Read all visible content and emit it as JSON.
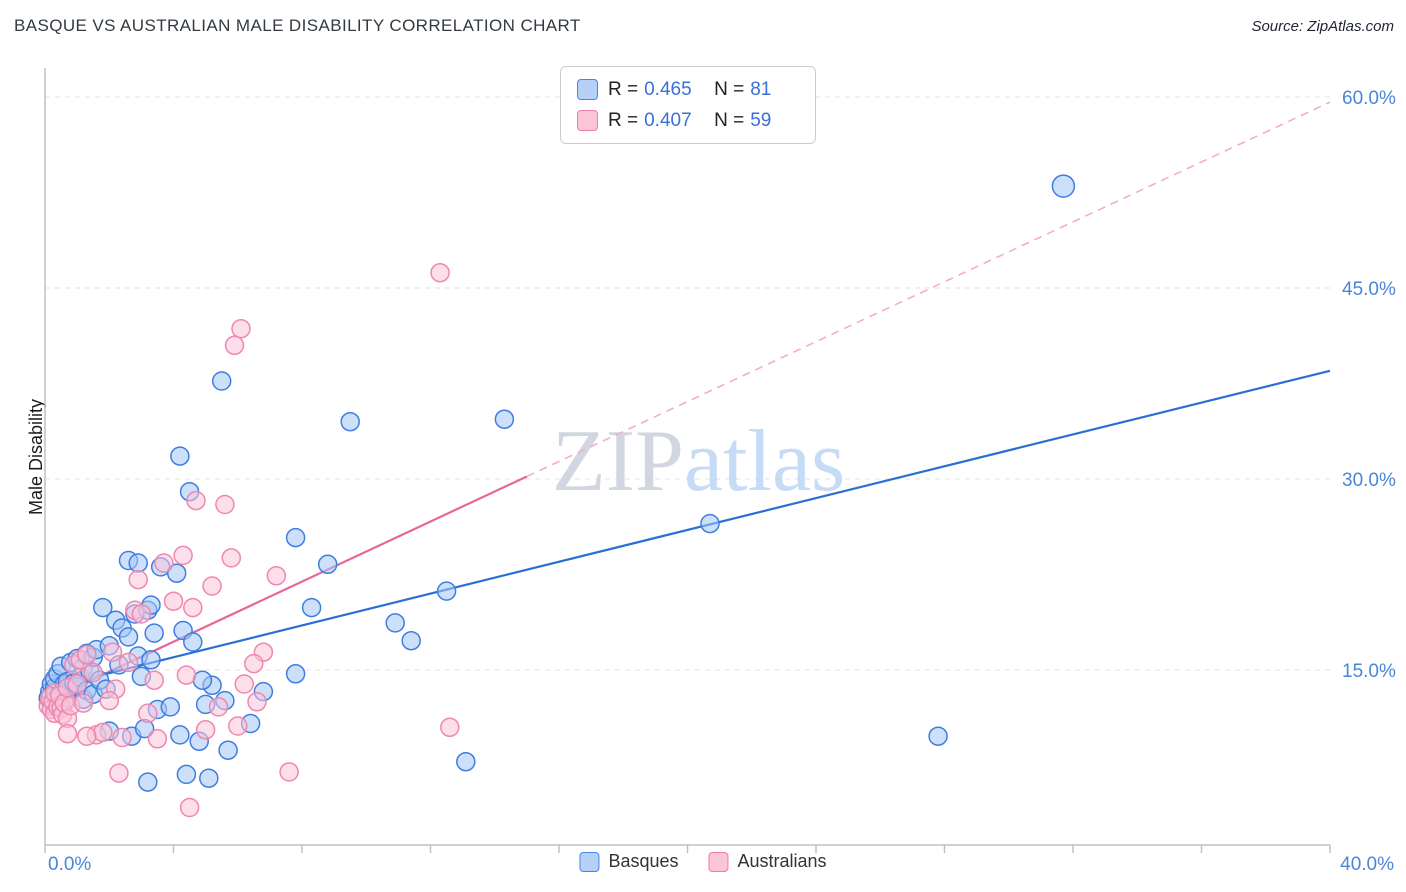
{
  "header": {
    "title": "BASQUE VS AUSTRALIAN MALE DISABILITY CORRELATION CHART",
    "source": "Source: ZipAtlas.com"
  },
  "legend_box": {
    "series": [
      {
        "r_label": "R =",
        "r": "0.465",
        "n_label": "N =",
        "n": "81"
      },
      {
        "r_label": "R =",
        "r": "0.407",
        "n_label": "N =",
        "n": "59"
      }
    ]
  },
  "watermark": {
    "zip": "ZIP",
    "atlas": "atlas"
  },
  "axes": {
    "y_label": "Male Disability",
    "y_ticks": [
      "60.0%",
      "45.0%",
      "30.0%",
      "15.0%"
    ],
    "x_min_label": "0.0%",
    "x_max_label": "40.0%"
  },
  "bottom_legend": [
    {
      "label": "Basques"
    },
    {
      "label": "Australians"
    }
  ],
  "colors": {
    "basques_stroke": "#3f7de0",
    "basques_fill": "rgba(164,199,245,0.55)",
    "australians_stroke": "#ef87ae",
    "australians_fill": "rgba(250,197,216,0.55)",
    "trend_blue": "#2a6fd4",
    "trend_pink": "#e8659a",
    "trend_pink_dashed": "#f3afc4",
    "gridline": "#e2e2e2",
    "axis_line": "#c0c0c0",
    "tick_label": "#4a86d8"
  },
  "chart_data": {
    "type": "scatter",
    "title": "BASQUE VS AUSTRALIAN MALE DISABILITY CORRELATION CHART",
    "xlabel": "",
    "ylabel": "Male Disability",
    "xlim": [
      0,
      40
    ],
    "ylim": [
      0,
      62
    ],
    "x_tick_values": [
      0,
      4,
      8,
      12,
      16,
      20,
      24,
      28,
      32,
      36,
      40
    ],
    "y_tick_values": [
      15,
      30,
      45,
      60
    ],
    "grid": true,
    "legend_position": "top-center",
    "series": [
      {
        "name": "Basques",
        "r": 0.465,
        "n": 81,
        "points": [
          [
            0.1,
            12.8
          ],
          [
            0.15,
            13.3
          ],
          [
            0.2,
            13.9
          ],
          [
            0.3,
            12.1
          ],
          [
            0.3,
            13.6
          ],
          [
            0.3,
            14.3
          ],
          [
            0.4,
            12.9
          ],
          [
            0.4,
            14.7
          ],
          [
            0.5,
            13.1
          ],
          [
            0.5,
            15.3
          ],
          [
            0.6,
            12.5
          ],
          [
            0.6,
            13.9
          ],
          [
            0.7,
            14.1
          ],
          [
            0.7,
            12.8
          ],
          [
            0.8,
            15.6
          ],
          [
            0.9,
            14.0
          ],
          [
            1.0,
            13.7
          ],
          [
            1.0,
            15.9
          ],
          [
            1.1,
            14.4
          ],
          [
            1.2,
            12.7
          ],
          [
            1.2,
            15.2
          ],
          [
            1.3,
            13.4
          ],
          [
            1.3,
            16.3
          ],
          [
            1.4,
            14.9
          ],
          [
            1.5,
            13.1
          ],
          [
            1.5,
            16.0
          ],
          [
            1.6,
            16.6
          ],
          [
            1.7,
            14.2
          ],
          [
            1.8,
            19.9
          ],
          [
            1.9,
            13.5
          ],
          [
            2.0,
            16.9
          ],
          [
            2.0,
            10.2
          ],
          [
            2.2,
            18.9
          ],
          [
            2.3,
            15.4
          ],
          [
            2.4,
            18.3
          ],
          [
            2.6,
            17.6
          ],
          [
            2.7,
            9.8
          ],
          [
            2.8,
            19.4
          ],
          [
            2.9,
            16.1
          ],
          [
            3.0,
            14.5
          ],
          [
            3.1,
            10.4
          ],
          [
            3.2,
            19.7
          ],
          [
            3.3,
            15.8
          ],
          [
            3.4,
            17.9
          ],
          [
            3.5,
            11.9
          ],
          [
            2.6,
            23.6
          ],
          [
            2.9,
            23.4
          ],
          [
            3.6,
            23.1
          ],
          [
            4.1,
            22.6
          ],
          [
            3.3,
            20.1
          ],
          [
            4.3,
            18.1
          ],
          [
            4.6,
            17.2
          ],
          [
            5.0,
            12.3
          ],
          [
            5.2,
            13.8
          ],
          [
            4.9,
            14.2
          ],
          [
            5.6,
            12.6
          ],
          [
            3.9,
            12.1
          ],
          [
            4.2,
            9.9
          ],
          [
            3.2,
            6.2
          ],
          [
            4.4,
            6.8
          ],
          [
            5.1,
            6.5
          ],
          [
            5.7,
            8.7
          ],
          [
            4.8,
            9.4
          ],
          [
            6.4,
            10.8
          ],
          [
            6.8,
            13.3
          ],
          [
            7.8,
            14.7
          ],
          [
            8.3,
            19.9
          ],
          [
            8.8,
            23.3
          ],
          [
            7.8,
            25.4
          ],
          [
            10.9,
            18.7
          ],
          [
            11.4,
            17.3
          ],
          [
            12.5,
            21.2
          ],
          [
            13.1,
            7.8
          ],
          [
            4.2,
            31.8
          ],
          [
            4.5,
            29.0
          ],
          [
            5.5,
            37.7
          ],
          [
            9.5,
            34.5
          ],
          [
            14.3,
            34.7
          ],
          [
            31.7,
            53.0,
            11
          ],
          [
            20.7,
            26.5
          ],
          [
            27.8,
            9.8
          ]
        ],
        "trend": {
          "solid": [
            [
              0,
              13.5
            ],
            [
              40,
              38.5
            ]
          ]
        }
      },
      {
        "name": "Australians",
        "r": 0.407,
        "n": 59,
        "points": [
          [
            0.1,
            12.2
          ],
          [
            0.15,
            12.8
          ],
          [
            0.2,
            11.9
          ],
          [
            0.25,
            12.5
          ],
          [
            0.3,
            13.2
          ],
          [
            0.3,
            11.6
          ],
          [
            0.4,
            12.1
          ],
          [
            0.45,
            13.0
          ],
          [
            0.5,
            12.0
          ],
          [
            0.55,
            11.5
          ],
          [
            0.6,
            12.4
          ],
          [
            0.7,
            13.6
          ],
          [
            0.7,
            11.2
          ],
          [
            0.8,
            12.2
          ],
          [
            0.9,
            15.4
          ],
          [
            1.0,
            13.9
          ],
          [
            1.1,
            15.8
          ],
          [
            1.2,
            12.4
          ],
          [
            1.3,
            16.2
          ],
          [
            1.5,
            14.8
          ],
          [
            1.6,
            9.9
          ],
          [
            1.8,
            10.1
          ],
          [
            2.1,
            16.4
          ],
          [
            2.2,
            13.5
          ],
          [
            2.4,
            9.7
          ],
          [
            2.6,
            15.6
          ],
          [
            2.8,
            19.7
          ],
          [
            3.0,
            19.4
          ],
          [
            3.2,
            11.6
          ],
          [
            3.4,
            14.2
          ],
          [
            3.7,
            23.4
          ],
          [
            2.9,
            22.1
          ],
          [
            4.0,
            20.4
          ],
          [
            4.3,
            24.0
          ],
          [
            4.6,
            19.9
          ],
          [
            5.2,
            21.6
          ],
          [
            5.8,
            23.8
          ],
          [
            6.2,
            13.9
          ],
          [
            6.6,
            12.5
          ],
          [
            5.4,
            12.1
          ],
          [
            1.3,
            9.8
          ],
          [
            0.7,
            10.0
          ],
          [
            2.0,
            12.6
          ],
          [
            4.4,
            14.6
          ],
          [
            5.0,
            10.3
          ],
          [
            6.0,
            10.6
          ],
          [
            6.8,
            16.4
          ],
          [
            7.2,
            22.4
          ],
          [
            5.6,
            28.0
          ],
          [
            4.7,
            28.3
          ],
          [
            6.1,
            41.8
          ],
          [
            5.9,
            40.5
          ],
          [
            12.3,
            46.2
          ],
          [
            12.6,
            10.5
          ],
          [
            7.6,
            7.0
          ],
          [
            4.5,
            4.2
          ],
          [
            3.5,
            9.6
          ],
          [
            2.3,
            6.9
          ],
          [
            6.5,
            15.5
          ]
        ],
        "trend": {
          "solid": [
            [
              0,
              12.5
            ],
            [
              15,
              30.2
            ]
          ],
          "dashed": [
            [
              15,
              30.2
            ],
            [
              40,
              59.6
            ]
          ]
        }
      }
    ]
  }
}
